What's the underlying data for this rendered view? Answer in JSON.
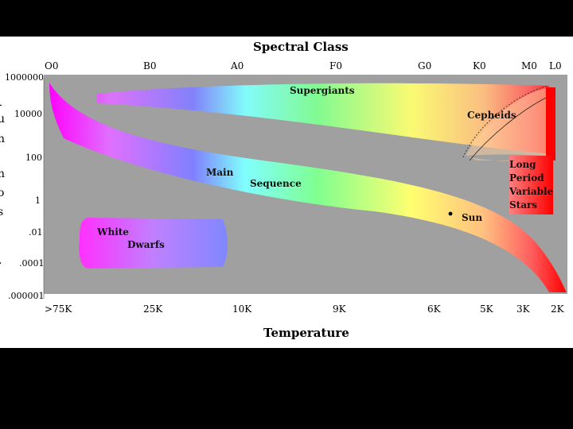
{
  "diagram": {
    "title": "Spectral Class",
    "xlabel": "Temperature",
    "spectral_classes": [
      "O0",
      "B0",
      "A0",
      "F0",
      "G0",
      "K0",
      "M0",
      "L0"
    ],
    "luminosity_ticks": [
      "1000000",
      "10000",
      "100",
      "1",
      ".01",
      ".0001",
      ".000001"
    ],
    "temperature_ticks": [
      ">75K",
      "25K",
      "10K",
      "9K",
      "6K",
      "5K",
      "3K",
      "2K"
    ],
    "regions": {
      "supergiants": "Supergiants",
      "cepheids": "Cepheids",
      "main": "Main",
      "sequence": "Sequence",
      "white": "White",
      "dwarfs": "Dwarfs",
      "long": "Long",
      "period": "Period",
      "variable": "Variable",
      "stars": "Stars",
      "sun": "Sun"
    },
    "side_letters": [
      "-",
      "u",
      "n",
      "n",
      "o",
      "s",
      "."
    ],
    "colors": {
      "plot_bg": "#a0a0a0",
      "gradient": [
        "#ff00ff",
        "#8080ff",
        "#80ffff",
        "#80ff80",
        "#ffff60",
        "#ffb060",
        "#ff0000"
      ]
    }
  }
}
